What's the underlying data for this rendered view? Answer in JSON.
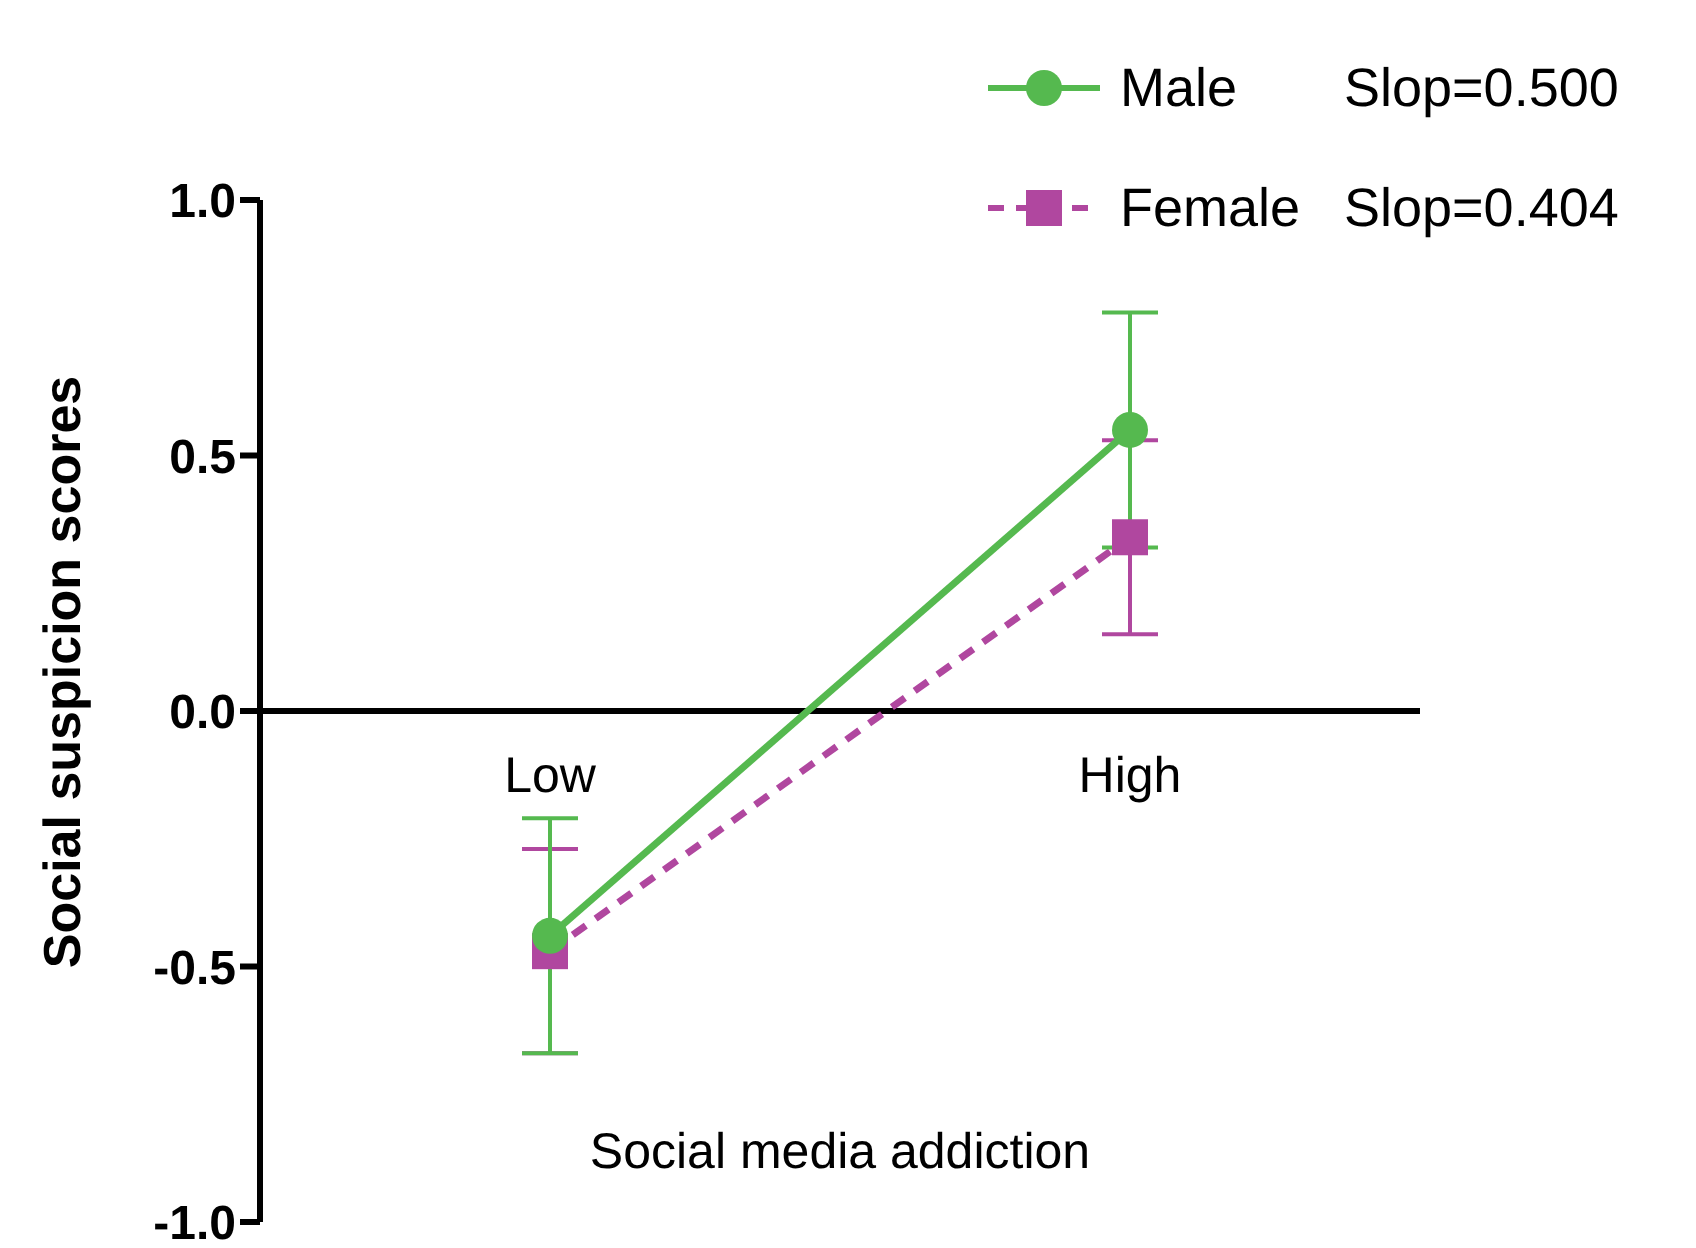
{
  "chart_data": {
    "type": "line",
    "xlabel": "Social media addiction",
    "ylabel": "Social suspicion scores",
    "categories": [
      "Low",
      "High"
    ],
    "series": [
      {
        "name": "Male",
        "color": "#55b94f",
        "values": [
          -0.44,
          0.55
        ],
        "errors": [
          0.23,
          0.23
        ],
        "marker": "circle",
        "line_style": "solid"
      },
      {
        "name": "Female",
        "color": "#b0479f",
        "values": [
          -0.47,
          0.34
        ],
        "errors": [
          0.2,
          0.19
        ],
        "marker": "square",
        "line_style": "dashed"
      }
    ],
    "annotations": [
      "Slop=0.500",
      "Slop=0.404"
    ],
    "ylim": [
      -1,
      1
    ],
    "yticks": [
      {
        "value": -1,
        "label": "-1.0"
      },
      {
        "value": -0.5,
        "label": "-0.5"
      },
      {
        "value": 0,
        "label": "0.0"
      },
      {
        "value": 0.5,
        "label": "0.5"
      },
      {
        "value": 1,
        "label": "1.0"
      }
    ],
    "grid": false,
    "legend": "top right"
  }
}
